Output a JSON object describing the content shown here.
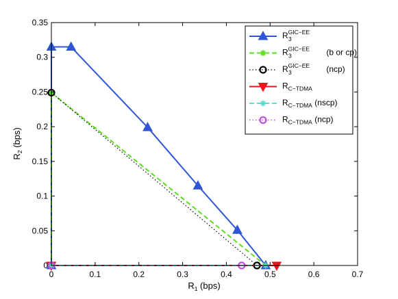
{
  "chart_data": {
    "type": "line",
    "xlabel": {
      "main": "R",
      "sub": "1",
      "rest": " (bps)"
    },
    "ylabel": {
      "main": "R",
      "sub": "2",
      "rest": " (bps)"
    },
    "xlim": [
      0,
      0.7
    ],
    "ylim": [
      0,
      0.35
    ],
    "xticks": [
      0,
      0.1,
      0.2,
      0.3,
      0.4,
      0.5,
      0.6,
      0.7
    ],
    "yticks": [
      0,
      0.05,
      0.1,
      0.15,
      0.2,
      0.25,
      0.3,
      0.35
    ],
    "legend_position": "top-right",
    "grid": false,
    "series": [
      {
        "legend": {
          "main": "R",
          "sub": "3",
          "sup": "GIC−EE",
          "rest": ""
        },
        "color": "#2f55d4",
        "dash": "solid",
        "marker": "triangle-up",
        "width": 2,
        "x": [
          0,
          0,
          0.045,
          0.22,
          0.335,
          0.425,
          0.49
        ],
        "y": [
          0,
          0.315,
          0.315,
          0.199,
          0.115,
          0.051,
          0
        ]
      },
      {
        "legend": {
          "main": "R",
          "sub": "3",
          "sup": "GIC−EE",
          "rest": " (b or cp)"
        },
        "color": "#5ade1e",
        "dash": "dashed",
        "marker": "star",
        "width": 2,
        "x": [
          0,
          0,
          0.49
        ],
        "y": [
          0,
          0.249,
          0
        ]
      },
      {
        "legend": {
          "main": "R",
          "sub": "3",
          "sup": "GIC−EE",
          "rest": " (ncp)"
        },
        "color": "#000000",
        "dash": "dotted",
        "marker": "circle",
        "width": 1.2,
        "x": [
          0,
          0,
          0.47
        ],
        "y": [
          0,
          0.249,
          0
        ]
      },
      {
        "legend": {
          "main": "R",
          "sub": "C−TDMA",
          "sup": "",
          "rest": ""
        },
        "color": "#e8161b",
        "dash": "solid",
        "marker": "triangle-down",
        "width": 2,
        "x": [
          0,
          0.515
        ],
        "y": [
          0,
          0
        ]
      },
      {
        "legend": {
          "main": "R",
          "sub": "C−TDMA",
          "sup": "",
          "rest": " (nscp)"
        },
        "color": "#5fd9c9",
        "dash": "dashed",
        "marker": "star",
        "width": 2,
        "x": [
          0,
          0.49
        ],
        "y": [
          0,
          0
        ]
      },
      {
        "legend": {
          "main": "R",
          "sub": "C−TDMA",
          "sup": "",
          "rest": " (ncp)"
        },
        "color": "#c24fe0",
        "dash": "dotted",
        "marker": "circle",
        "width": 1.5,
        "x": [
          0,
          0.435
        ],
        "y": [
          0,
          0
        ]
      }
    ]
  }
}
